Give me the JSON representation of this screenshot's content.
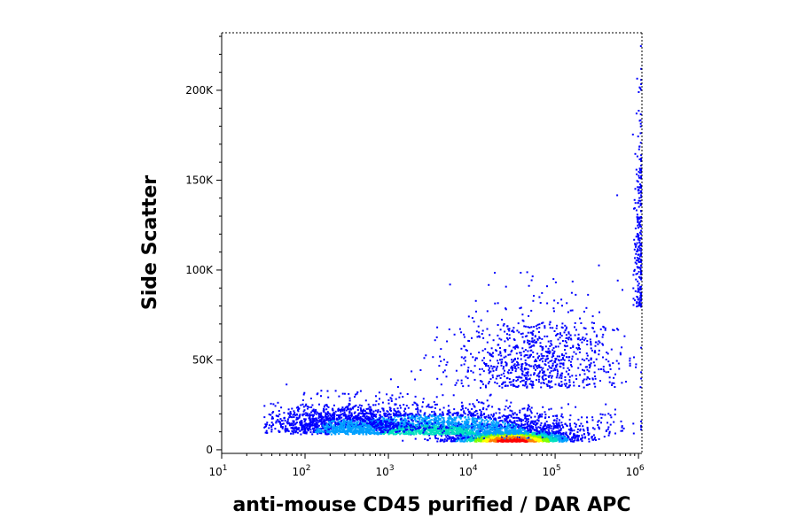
{
  "chart_data": {
    "type": "scatter",
    "title": "",
    "xlabel": "anti-mouse CD45 purified / DAR APC",
    "ylabel": "Side Scatter",
    "xscale": "log",
    "xlim": [
      10,
      1100000
    ],
    "ylim": [
      -2000,
      232000
    ],
    "x_ticks": [
      {
        "base": "10",
        "exp": "1",
        "value": 10
      },
      {
        "base": "10",
        "exp": "2",
        "value": 100
      },
      {
        "base": "10",
        "exp": "3",
        "value": 1000
      },
      {
        "base": "10",
        "exp": "4",
        "value": 10000
      },
      {
        "base": "10",
        "exp": "5",
        "value": 100000
      },
      {
        "base": "10",
        "exp": "6",
        "value": 1000000
      }
    ],
    "y_ticks": [
      {
        "label": "0",
        "value": 0
      },
      {
        "label": "50K",
        "value": 50000
      },
      {
        "label": "100K",
        "value": 100000
      },
      {
        "label": "150K",
        "value": 150000
      },
      {
        "label": "200K",
        "value": 200000
      }
    ],
    "grid": false,
    "legend": "none",
    "color_scale": [
      "#0000ff",
      "#00a0ff",
      "#00e0c0",
      "#80ff00",
      "#ffff00",
      "#ff8000",
      "#ff0000"
    ],
    "density_clusters": [
      {
        "x_center": 30000,
        "y_center": 5000,
        "x_spread_decades": 0.35,
        "y_spread": 3500,
        "count": 2200,
        "peak_density": 1.0
      },
      {
        "x_center": 3000,
        "y_center": 9000,
        "x_spread_decades": 0.9,
        "y_spread": 8000,
        "count": 2600,
        "peak_density": 0.35
      },
      {
        "x_center": 300,
        "y_center": 10000,
        "x_spread_decades": 0.45,
        "y_spread": 9000,
        "count": 900,
        "peak_density": 0.2
      },
      {
        "x_center": 60000,
        "y_center": 35000,
        "x_spread_decades": 0.5,
        "y_spread": 25000,
        "count": 900,
        "peak_density": 0.12
      },
      {
        "x_center": 1000000,
        "y_center": 80000,
        "x_spread_decades": 0.03,
        "y_spread": 60000,
        "count": 250,
        "peak_density": 0.1
      }
    ]
  }
}
